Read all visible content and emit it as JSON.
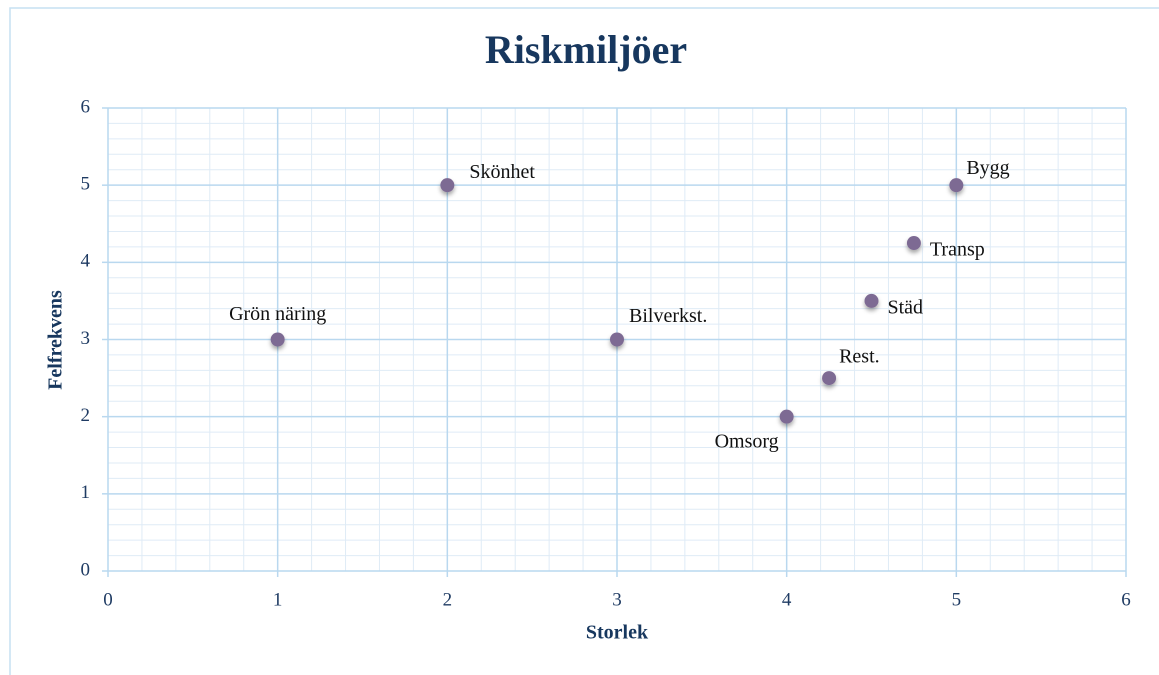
{
  "chart_data": {
    "type": "scatter",
    "title": "Riskmiljöer",
    "x_label": "Storlek",
    "y_label": "Felfrekvens",
    "series": [
      {
        "color": "#7d6a93",
        "labels": [
          "Grön näring",
          "Skönhet",
          "Bilverkst.",
          "Omsorg",
          "Rest.",
          "Städ",
          "Transp",
          "Bygg"
        ],
        "x": [
          1,
          2,
          3,
          4,
          4.25,
          4.5,
          4.75,
          5
        ],
        "values": [
          3,
          5,
          3,
          2,
          2.5,
          3.5,
          4.25,
          5
        ]
      }
    ],
    "xlim": [
      0,
      6
    ],
    "xticks": [
      0,
      1,
      2,
      3,
      4,
      5,
      6
    ],
    "ylim": [
      0,
      6
    ],
    "yticks": [
      0,
      1,
      2,
      3,
      4,
      5,
      6
    ],
    "grid": true,
    "minor_grid": true
  }
}
